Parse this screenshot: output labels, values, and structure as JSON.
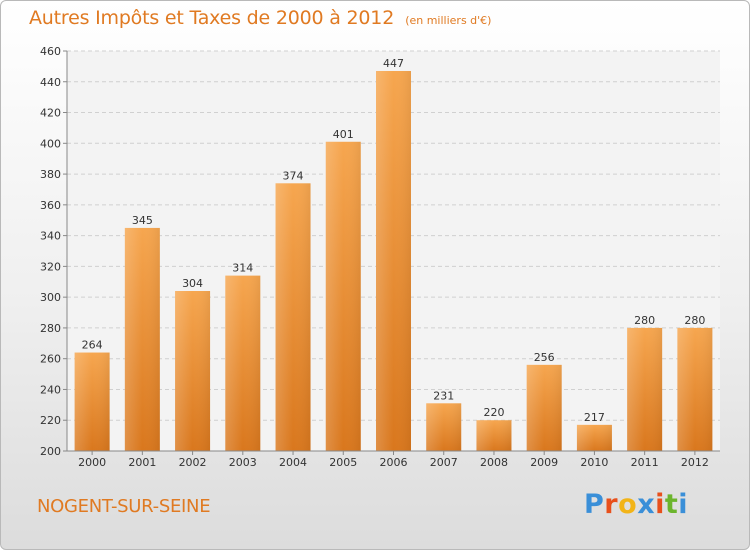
{
  "title": "Autres Impôts et Taxes de 2000 à 2012",
  "subtitle": "(en milliers d'€)",
  "commune": "NOGENT-SUR-SEINE",
  "logo": {
    "text": "Proxiti",
    "letters": [
      "P",
      "r",
      "o",
      "x",
      "i",
      "t",
      "i"
    ],
    "colors": [
      "#3a8fd8",
      "#e8501c",
      "#f2b418",
      "#3a8fd8",
      "#e8501c",
      "#6cb52d",
      "#3a8fd8"
    ]
  },
  "colors": {
    "bar_top": "#f6a64f",
    "bar_bottom": "#d9771d",
    "accent": "#e07a22"
  },
  "chart_data": {
    "type": "bar",
    "categories": [
      "2000",
      "2001",
      "2002",
      "2003",
      "2004",
      "2005",
      "2006",
      "2007",
      "2008",
      "2009",
      "2010",
      "2011",
      "2012"
    ],
    "values": [
      264,
      345,
      304,
      314,
      374,
      401,
      447,
      231,
      220,
      256,
      217,
      280,
      280
    ],
    "y_ticks": [
      200,
      220,
      240,
      260,
      280,
      300,
      320,
      340,
      360,
      380,
      400,
      420,
      440,
      460
    ],
    "ylim": [
      200,
      460
    ],
    "grid": true
  }
}
